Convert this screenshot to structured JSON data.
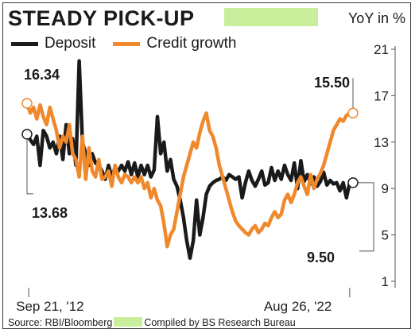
{
  "header": {
    "title": "STEADY PICK-UP",
    "unit_label": "YoY in %"
  },
  "legend": [
    {
      "label": "Deposit",
      "color": "#1a1a1a"
    },
    {
      "label": "Credit growth",
      "color": "#f0892b"
    }
  ],
  "footer": {
    "source_text": "Source: RBI/Bloomberg",
    "compiled_text": "Compiled by BS Research Bureau"
  },
  "chart_data": {
    "type": "line",
    "title": "STEADY PICK-UP",
    "unit": "YoY in %",
    "ylim": [
      1,
      21
    ],
    "y_ticks": [
      "1",
      "5",
      "9",
      "13",
      "17",
      "21"
    ],
    "y_tick_values": [
      1,
      5,
      9,
      13,
      17,
      21
    ],
    "x_range": [
      0,
      1
    ],
    "x_tick_labels": [
      "Sep 21, '12",
      "Aug 26, '22"
    ],
    "x_tick_positions": [
      0.015,
      0.985
    ],
    "y_axis_position": "right",
    "grid": false,
    "series": [
      {
        "name": "Deposit",
        "color": "#1a1a1a",
        "x": [
          0.0,
          0.01,
          0.02,
          0.03,
          0.04,
          0.05,
          0.06,
          0.07,
          0.08,
          0.09,
          0.1,
          0.11,
          0.12,
          0.13,
          0.14,
          0.15,
          0.16,
          0.17,
          0.18,
          0.19,
          0.2,
          0.21,
          0.22,
          0.23,
          0.24,
          0.25,
          0.26,
          0.27,
          0.28,
          0.29,
          0.3,
          0.31,
          0.32,
          0.33,
          0.34,
          0.35,
          0.36,
          0.37,
          0.38,
          0.39,
          0.4,
          0.41,
          0.42,
          0.43,
          0.44,
          0.45,
          0.46,
          0.47,
          0.48,
          0.49,
          0.5,
          0.51,
          0.52,
          0.53,
          0.54,
          0.55,
          0.56,
          0.57,
          0.58,
          0.59,
          0.6,
          0.61,
          0.62,
          0.63,
          0.64,
          0.65,
          0.66,
          0.67,
          0.68,
          0.69,
          0.7,
          0.71,
          0.72,
          0.73,
          0.74,
          0.75,
          0.76,
          0.77,
          0.78,
          0.79,
          0.8,
          0.81,
          0.82,
          0.83,
          0.84,
          0.85,
          0.86,
          0.87,
          0.88,
          0.89,
          0.9,
          0.91,
          0.92,
          0.93,
          0.94,
          0.95,
          0.96,
          0.97,
          0.98,
          0.99,
          1.0
        ],
        "y": [
          13.68,
          13.2,
          12.8,
          13.5,
          11.0,
          14.0,
          13.5,
          12.5,
          13.0,
          12.0,
          13.5,
          11.5,
          14.5,
          12.0,
          13.3,
          11.0,
          20.0,
          13.0,
          12.0,
          11.0,
          12.0,
          11.2,
          11.0,
          10.5,
          9.8,
          11.0,
          10.0,
          10.8,
          10.5,
          11.0,
          10.5,
          11.3,
          10.2,
          11.2,
          10.0,
          11.0,
          10.2,
          11.0,
          10.0,
          10.6,
          15.2,
          12.0,
          13.0,
          10.5,
          11.5,
          9.8,
          9.2,
          8.0,
          6.5,
          4.5,
          3.0,
          4.5,
          8.0,
          5.0,
          6.5,
          8.5,
          9.2,
          9.5,
          9.7,
          9.8,
          10.0,
          9.7,
          10.2,
          10.0,
          9.8,
          10.0,
          8.2,
          9.5,
          10.5,
          9.7,
          9.2,
          9.8,
          10.5,
          9.3,
          9.5,
          10.8,
          9.7,
          10.5,
          9.8,
          11.0,
          10.2,
          9.7,
          11.2,
          9.0,
          11.4,
          9.6,
          10.2,
          9.4,
          10.0,
          9.2,
          9.6,
          10.4,
          9.3,
          9.7,
          9.4,
          9.5,
          8.8,
          9.5,
          8.2,
          9.5,
          9.5
        ]
      },
      {
        "name": "Credit growth",
        "color": "#f0892b",
        "x": [
          0.0,
          0.01,
          0.02,
          0.03,
          0.04,
          0.05,
          0.06,
          0.07,
          0.08,
          0.09,
          0.1,
          0.11,
          0.12,
          0.13,
          0.14,
          0.15,
          0.16,
          0.17,
          0.18,
          0.19,
          0.2,
          0.21,
          0.22,
          0.23,
          0.24,
          0.25,
          0.26,
          0.27,
          0.28,
          0.29,
          0.3,
          0.31,
          0.32,
          0.33,
          0.34,
          0.35,
          0.36,
          0.37,
          0.38,
          0.39,
          0.4,
          0.41,
          0.42,
          0.43,
          0.44,
          0.45,
          0.46,
          0.47,
          0.48,
          0.49,
          0.5,
          0.51,
          0.52,
          0.53,
          0.54,
          0.55,
          0.56,
          0.57,
          0.58,
          0.59,
          0.6,
          0.61,
          0.62,
          0.63,
          0.64,
          0.65,
          0.66,
          0.67,
          0.68,
          0.69,
          0.7,
          0.71,
          0.72,
          0.73,
          0.74,
          0.75,
          0.76,
          0.77,
          0.78,
          0.79,
          0.8,
          0.81,
          0.82,
          0.83,
          0.84,
          0.85,
          0.86,
          0.87,
          0.88,
          0.89,
          0.9,
          0.91,
          0.92,
          0.93,
          0.94,
          0.95,
          0.96,
          0.97,
          0.98,
          0.99,
          1.0
        ],
        "y": [
          16.34,
          15.5,
          16.0,
          15.0,
          16.2,
          15.2,
          14.5,
          16.0,
          15.0,
          14.0,
          12.5,
          13.5,
          13.0,
          14.5,
          12.0,
          11.5,
          10.0,
          13.5,
          9.8,
          12.5,
          10.5,
          10.0,
          11.5,
          9.8,
          10.0,
          10.5,
          9.2,
          11.0,
          10.0,
          9.5,
          10.2,
          10.0,
          9.5,
          10.0,
          9.5,
          10.0,
          9.0,
          9.5,
          8.2,
          9.0,
          8.0,
          7.5,
          6.0,
          4.0,
          5.0,
          5.5,
          7.0,
          8.5,
          10.0,
          11.0,
          12.0,
          13.0,
          12.5,
          13.8,
          14.8,
          15.5,
          14.0,
          13.5,
          12.5,
          11.0,
          10.0,
          9.0,
          8.0,
          7.0,
          6.2,
          5.8,
          5.5,
          5.2,
          5.0,
          5.5,
          5.8,
          5.2,
          5.5,
          6.0,
          5.8,
          6.5,
          7.0,
          6.5,
          6.8,
          8.0,
          8.5,
          7.8,
          8.5,
          9.5,
          10.0,
          9.2,
          8.5,
          10.2,
          9.0,
          9.8,
          10.3,
          11.0,
          12.0,
          13.0,
          14.0,
          14.5,
          15.0,
          14.8,
          15.3,
          15.5,
          15.5
        ]
      }
    ],
    "callouts": [
      {
        "series": "Credit growth",
        "x": 0.0,
        "y": 16.34,
        "label": "16.34"
      },
      {
        "series": "Deposit",
        "x": 0.0,
        "y": 13.68,
        "label": "13.68"
      },
      {
        "series": "Credit growth",
        "x": 1.0,
        "y": 15.5,
        "label": "15.50"
      },
      {
        "series": "Deposit",
        "x": 1.0,
        "y": 9.5,
        "label": "9.50"
      }
    ]
  }
}
